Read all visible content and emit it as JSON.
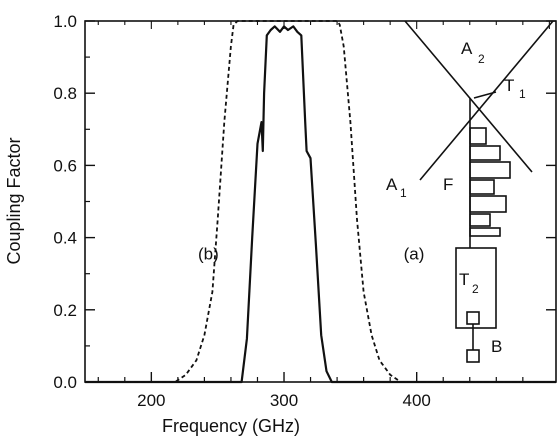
{
  "chart_data": {
    "type": "line",
    "title": "",
    "xlabel": "Frequency (GHz)",
    "ylabel": "Coupling Factor",
    "xlim": [
      150,
      505
    ],
    "ylim": [
      0.0,
      1.0
    ],
    "xticks": [
      200,
      300,
      400
    ],
    "yticks": [
      0.0,
      0.2,
      0.4,
      0.6,
      0.8,
      1.0
    ],
    "ytick_labels": [
      "0.0",
      "0.2",
      "0.4",
      "0.6",
      "0.8",
      "1.0"
    ],
    "grid": false,
    "legend": "none",
    "series": [
      {
        "line_style": "solid",
        "x": [
          150,
          268,
          272,
          276,
          280,
          283,
          284,
          285,
          287,
          290,
          293,
          297,
          300,
          303,
          307,
          310,
          313,
          315,
          316,
          317,
          320,
          324,
          328,
          332,
          336,
          340,
          505
        ],
        "y": [
          0.0,
          0.0,
          0.12,
          0.4,
          0.66,
          0.72,
          0.64,
          0.8,
          0.96,
          0.975,
          0.985,
          0.97,
          0.985,
          0.975,
          0.985,
          0.97,
          0.96,
          0.8,
          0.72,
          0.64,
          0.62,
          0.38,
          0.13,
          0.03,
          0.0,
          0.0,
          0.0
        ]
      },
      {
        "line_style": "dashed",
        "x": [
          150,
          218,
          226,
          234,
          240,
          246,
          250,
          255,
          260,
          262,
          265,
          340,
          342,
          345,
          350,
          355,
          360,
          366,
          372,
          380,
          388,
          505
        ],
        "y": [
          0.0,
          0.0,
          0.02,
          0.06,
          0.13,
          0.25,
          0.45,
          0.72,
          0.93,
          0.99,
          1.0,
          1.0,
          0.99,
          0.93,
          0.72,
          0.45,
          0.25,
          0.13,
          0.06,
          0.02,
          0.0,
          0.0
        ]
      }
    ],
    "annotations": [
      {
        "text": "(b)",
        "x": 243,
        "y": 0.34
      },
      {
        "text": "(a)",
        "x": 398,
        "y": 0.34
      }
    ],
    "inset": {
      "labels": [
        {
          "text": "A",
          "sub": "2"
        },
        {
          "text": "T",
          "sub": "1"
        },
        {
          "text": "A",
          "sub": "1"
        },
        {
          "text": "F",
          "sub": ""
        },
        {
          "text": "T",
          "sub": "2"
        },
        {
          "text": "B",
          "sub": ""
        }
      ]
    },
    "colors": {
      "line": "#111111",
      "background": "#ffffff"
    }
  }
}
